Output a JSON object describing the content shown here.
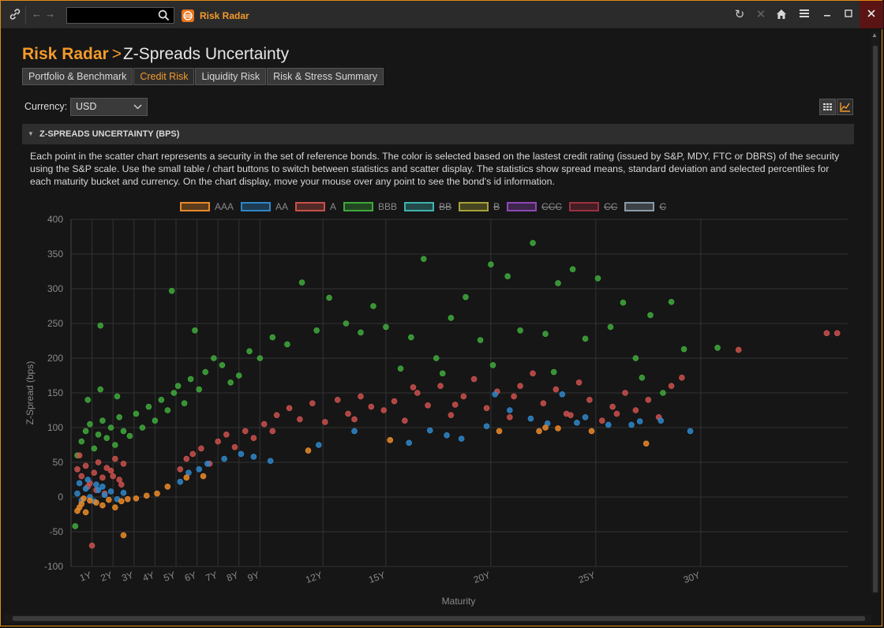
{
  "titlebar": {
    "search_value": "",
    "app_title": "Risk Radar",
    "icons": [
      "link-icon",
      "back-arrow-icon",
      "forward-arrow-icon",
      "search-icon",
      "app-logo-icon",
      "refresh-icon",
      "close-x-icon",
      "home-icon",
      "menu-icon",
      "minimize-icon",
      "maximize-icon",
      "window-close-icon"
    ]
  },
  "page": {
    "app_name": "Risk Radar",
    "separator": ">",
    "title": "Z-Spreads Uncertainty"
  },
  "tabs": [
    {
      "label": "Portfolio & Benchmark",
      "active": false
    },
    {
      "label": "Credit Risk",
      "active": true
    },
    {
      "label": "Liquidity Risk",
      "active": false
    },
    {
      "label": "Risk & Stress Summary",
      "active": false
    }
  ],
  "currency": {
    "label": "Currency:",
    "value": "USD"
  },
  "section": {
    "title": "Z-SPREADS UNCERTAINTY (BPS)",
    "description": "Each point in the scatter chart represents a security in the set of reference bonds. The color is selected based on the lastest credit rating (issued by S&P, MDY, FTC or DBRS) of the security using the S&P scale. Use the small table / chart buttons to switch between statistics and scatter display. The statistics show spread means, standard deviation and selected percentiles for each maturity bucket and currency. On the chart display, move your mouse over any point to see the bond's id information."
  },
  "chart_data": {
    "type": "scatter",
    "xlabel": "Maturity",
    "ylabel": "Z-Spread (bps)",
    "ylim": [
      -100,
      400
    ],
    "xlim": [
      0,
      37
    ],
    "y_ticks": [
      400,
      350,
      300,
      250,
      200,
      150,
      100,
      50,
      0,
      -50,
      -100
    ],
    "x_ticks": [
      {
        "value": 1,
        "label": "1Y"
      },
      {
        "value": 2,
        "label": "2Y"
      },
      {
        "value": 3,
        "label": "3Y"
      },
      {
        "value": 4,
        "label": "4Y"
      },
      {
        "value": 5,
        "label": "5Y"
      },
      {
        "value": 6,
        "label": "6Y"
      },
      {
        "value": 7,
        "label": "7Y"
      },
      {
        "value": 8,
        "label": "8Y"
      },
      {
        "value": 9,
        "label": "9Y"
      },
      {
        "value": 12,
        "label": "12Y"
      },
      {
        "value": 15,
        "label": "15Y"
      },
      {
        "value": 20,
        "label": "20Y"
      },
      {
        "value": 25,
        "label": "25Y"
      },
      {
        "value": 30,
        "label": "30Y"
      }
    ],
    "grid": true,
    "legend_position": "top-center",
    "legend": [
      {
        "name": "AAA",
        "color": "#e8892a",
        "visible": true
      },
      {
        "name": "AA",
        "color": "#2f86c8",
        "visible": true
      },
      {
        "name": "A",
        "color": "#c9504c",
        "visible": true
      },
      {
        "name": "BBB",
        "color": "#3fa83b",
        "visible": true
      },
      {
        "name": "BB",
        "color": "#3fb3ae",
        "visible": false
      },
      {
        "name": "B",
        "color": "#a8a13a",
        "visible": false
      },
      {
        "name": "CCC",
        "color": "#8e47b5",
        "visible": false
      },
      {
        "name": "CC",
        "color": "#9c3141",
        "visible": false
      },
      {
        "name": "C",
        "color": "#8a9aa8",
        "visible": false
      }
    ],
    "series": [
      {
        "name": "AAA",
        "color": "#e8892a",
        "points": [
          [
            0.3,
            -20
          ],
          [
            0.5,
            -10
          ],
          [
            0.7,
            -22
          ],
          [
            0.9,
            -5
          ],
          [
            1.2,
            -8
          ],
          [
            1.5,
            -12
          ],
          [
            1.8,
            -4
          ],
          [
            2.1,
            -15
          ],
          [
            2.4,
            -6
          ],
          [
            2.7,
            -3
          ],
          [
            3.1,
            -2
          ],
          [
            3.6,
            2
          ],
          [
            4.1,
            5
          ],
          [
            4.6,
            15
          ],
          [
            5.5,
            28
          ],
          [
            6.3,
            30
          ],
          [
            11.3,
            67
          ],
          [
            15.2,
            82
          ],
          [
            20.4,
            95
          ],
          [
            22.3,
            95
          ],
          [
            22.6,
            100
          ],
          [
            23.2,
            99
          ],
          [
            24.8,
            95
          ],
          [
            27.4,
            77
          ],
          [
            2.5,
            -55
          ],
          [
            0.4,
            -15
          ],
          [
            0.6,
            -2
          ]
        ]
      },
      {
        "name": "AA",
        "color": "#2f86c8",
        "points": [
          [
            0.3,
            5
          ],
          [
            0.5,
            -5
          ],
          [
            0.7,
            12
          ],
          [
            0.9,
            0
          ],
          [
            1.1,
            -6
          ],
          [
            1.3,
            10
          ],
          [
            1.6,
            3
          ],
          [
            1.9,
            8
          ],
          [
            2.2,
            -3
          ],
          [
            2.5,
            6
          ],
          [
            0.4,
            20
          ],
          [
            0.8,
            25
          ],
          [
            1.2,
            18
          ],
          [
            1.5,
            15
          ],
          [
            5.2,
            22
          ],
          [
            5.6,
            35
          ],
          [
            6.1,
            40
          ],
          [
            6.5,
            48
          ],
          [
            7.3,
            55
          ],
          [
            8.1,
            62
          ],
          [
            8.7,
            58
          ],
          [
            9.5,
            52
          ],
          [
            11.8,
            75
          ],
          [
            13.5,
            95
          ],
          [
            16.1,
            78
          ],
          [
            17.1,
            96
          ],
          [
            17.9,
            89
          ],
          [
            18.6,
            84
          ],
          [
            19.8,
            102
          ],
          [
            20.2,
            148
          ],
          [
            21.9,
            113
          ],
          [
            22.7,
            106
          ],
          [
            23.4,
            148
          ],
          [
            24.1,
            107
          ],
          [
            25.6,
            104
          ],
          [
            26.7,
            104
          ],
          [
            27.1,
            109
          ],
          [
            28.1,
            110
          ],
          [
            29.5,
            95
          ],
          [
            20.9,
            125
          ],
          [
            24.5,
            115
          ]
        ]
      },
      {
        "name": "A",
        "color": "#c9504c",
        "points": [
          [
            0.3,
            40
          ],
          [
            0.5,
            30
          ],
          [
            0.7,
            45
          ],
          [
            0.9,
            20
          ],
          [
            1.1,
            35
          ],
          [
            1.3,
            50
          ],
          [
            1.5,
            28
          ],
          [
            1.7,
            42
          ],
          [
            1.9,
            38
          ],
          [
            2.1,
            55
          ],
          [
            2.3,
            25
          ],
          [
            2.5,
            48
          ],
          [
            0.4,
            60
          ],
          [
            0.8,
            15
          ],
          [
            1.2,
            10
          ],
          [
            1.6,
            5
          ],
          [
            2.0,
            30
          ],
          [
            2.4,
            18
          ],
          [
            1.0,
            -70
          ],
          [
            5.2,
            40
          ],
          [
            5.5,
            55
          ],
          [
            5.8,
            62
          ],
          [
            6.2,
            70
          ],
          [
            6.6,
            48
          ],
          [
            7.0,
            80
          ],
          [
            7.4,
            90
          ],
          [
            7.8,
            72
          ],
          [
            8.3,
            95
          ],
          [
            8.7,
            85
          ],
          [
            9.2,
            105
          ],
          [
            9.8,
            118
          ],
          [
            10.4,
            128
          ],
          [
            10.9,
            112
          ],
          [
            11.5,
            135
          ],
          [
            12.1,
            108
          ],
          [
            12.7,
            140
          ],
          [
            13.2,
            120
          ],
          [
            13.8,
            145
          ],
          [
            14.3,
            130
          ],
          [
            14.9,
            125
          ],
          [
            15.4,
            138
          ],
          [
            15.9,
            110
          ],
          [
            16.5,
            150
          ],
          [
            17.0,
            132
          ],
          [
            17.6,
            160
          ],
          [
            18.1,
            118
          ],
          [
            18.7,
            145
          ],
          [
            19.2,
            170
          ],
          [
            19.8,
            128
          ],
          [
            20.3,
            152
          ],
          [
            20.9,
            115
          ],
          [
            21.4,
            160
          ],
          [
            22.0,
            178
          ],
          [
            22.5,
            135
          ],
          [
            23.1,
            155
          ],
          [
            23.6,
            120
          ],
          [
            24.2,
            165
          ],
          [
            24.7,
            140
          ],
          [
            25.3,
            110
          ],
          [
            25.8,
            130
          ],
          [
            26.4,
            150
          ],
          [
            26.9,
            125
          ],
          [
            27.5,
            140
          ],
          [
            28.0,
            115
          ],
          [
            28.6,
            160
          ],
          [
            29.1,
            172
          ],
          [
            31.8,
            212
          ],
          [
            36.0,
            236
          ],
          [
            36.5,
            236
          ],
          [
            9.6,
            95
          ],
          [
            13.5,
            112
          ],
          [
            16.3,
            158
          ],
          [
            18.3,
            133
          ],
          [
            21.1,
            145
          ],
          [
            23.8,
            118
          ],
          [
            26.0,
            120
          ]
        ]
      },
      {
        "name": "BBB",
        "color": "#3fa83b",
        "points": [
          [
            0.2,
            -42
          ],
          [
            0.3,
            60
          ],
          [
            0.5,
            80
          ],
          [
            0.7,
            95
          ],
          [
            0.9,
            105
          ],
          [
            1.1,
            70
          ],
          [
            1.3,
            90
          ],
          [
            1.5,
            110
          ],
          [
            1.7,
            85
          ],
          [
            1.9,
            100
          ],
          [
            2.1,
            75
          ],
          [
            2.3,
            115
          ],
          [
            2.5,
            95
          ],
          [
            2.8,
            88
          ],
          [
            3.1,
            120
          ],
          [
            3.4,
            100
          ],
          [
            3.7,
            130
          ],
          [
            4.0,
            110
          ],
          [
            4.3,
            140
          ],
          [
            4.6,
            125
          ],
          [
            4.9,
            150
          ],
          [
            5.1,
            160
          ],
          [
            5.4,
            135
          ],
          [
            5.7,
            170
          ],
          [
            6.1,
            155
          ],
          [
            6.4,
            180
          ],
          [
            6.8,
            200
          ],
          [
            7.2,
            190
          ],
          [
            7.6,
            165
          ],
          [
            8.0,
            175
          ],
          [
            8.5,
            210
          ],
          [
            9.0,
            200
          ],
          [
            9.6,
            230
          ],
          [
            10.3,
            220
          ],
          [
            11.0,
            309
          ],
          [
            11.7,
            240
          ],
          [
            12.3,
            287
          ],
          [
            13.1,
            250
          ],
          [
            13.8,
            237
          ],
          [
            14.4,
            275
          ],
          [
            15.0,
            245
          ],
          [
            15.7,
            185
          ],
          [
            16.2,
            230
          ],
          [
            16.8,
            343
          ],
          [
            17.4,
            200
          ],
          [
            18.1,
            258
          ],
          [
            18.8,
            288
          ],
          [
            19.5,
            226
          ],
          [
            20.1,
            190
          ],
          [
            20.8,
            318
          ],
          [
            21.4,
            240
          ],
          [
            22.0,
            366
          ],
          [
            22.6,
            235
          ],
          [
            23.2,
            308
          ],
          [
            23.9,
            328
          ],
          [
            24.5,
            228
          ],
          [
            25.1,
            315
          ],
          [
            25.7,
            245
          ],
          [
            26.3,
            280
          ],
          [
            26.9,
            200
          ],
          [
            27.6,
            262
          ],
          [
            28.2,
            150
          ],
          [
            28.6,
            281
          ],
          [
            29.2,
            213
          ],
          [
            30.8,
            215
          ],
          [
            0.8,
            140
          ],
          [
            1.4,
            155
          ],
          [
            2.2,
            145
          ],
          [
            4.8,
            297
          ],
          [
            5.9,
            240
          ],
          [
            1.4,
            247
          ],
          [
            20.0,
            335
          ],
          [
            17.7,
            178
          ],
          [
            23.0,
            180
          ],
          [
            27.2,
            172
          ]
        ]
      }
    ]
  }
}
